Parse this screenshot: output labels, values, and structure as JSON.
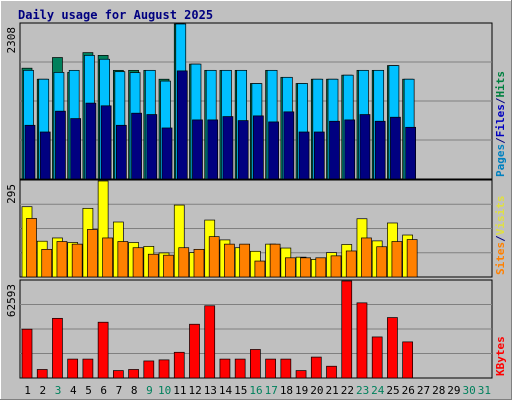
{
  "chart_data": {
    "type": "bar",
    "title": "Daily usage for August 2025",
    "days": [
      "1",
      "2",
      "3",
      "4",
      "5",
      "6",
      "7",
      "8",
      "9",
      "10",
      "11",
      "12",
      "13",
      "14",
      "15",
      "16",
      "17",
      "18",
      "19",
      "20",
      "21",
      "22",
      "23",
      "24",
      "25",
      "26",
      "27",
      "28",
      "29",
      "30",
      "31"
    ],
    "weekend_days": [
      "3",
      "9",
      "10",
      "16",
      "17",
      "23",
      "24",
      "30",
      "31"
    ],
    "panels": [
      {
        "name": "pages-files-hits",
        "max_label": "2308",
        "ymax": 2308,
        "legend": [
          {
            "text": "Pages",
            "color": "#0080c0"
          },
          {
            "text": "/",
            "color": "#000080"
          },
          {
            "text": "Files",
            "color": "#0000c0"
          },
          {
            "text": "/",
            "color": "#000080"
          },
          {
            "text": "Hits",
            "color": "#008040"
          }
        ],
        "series": [
          {
            "name": "Hits",
            "color": "#00805c",
            "values": [
              1650,
              1486,
              1809,
              1587,
              1882,
              1841,
              1618,
              1618,
              1618,
              1486,
              2308,
              1711,
              1618,
              1618,
              1618,
              1422,
              1618,
              1514,
              1422,
              1486,
              1486,
              1546,
              1618,
              1618,
              1689,
              1486,
              0,
              0,
              0,
              0,
              0
            ]
          },
          {
            "name": "Files",
            "color": "#00c0ff",
            "values": [
              1618,
              1486,
              1587,
              1618,
              1841,
              1783,
              1598,
              1584,
              1618,
              1458,
              2308,
              1711,
              1618,
              1618,
              1618,
              1422,
              1618,
              1514,
              1422,
              1486,
              1486,
              1546,
              1618,
              1618,
              1689,
              1486,
              0,
              0,
              0,
              0,
              0
            ]
          },
          {
            "name": "Pages",
            "color": "#000080",
            "values": [
              800,
              700,
              1010,
              900,
              1130,
              1090,
              800,
              980,
              960,
              760,
              1610,
              880,
              880,
              930,
              870,
              940,
              850,
              1000,
              700,
              700,
              860,
              880,
              960,
              860,
              920,
              770,
              0,
              0,
              0,
              0,
              0
            ]
          }
        ]
      },
      {
        "name": "visits-sites",
        "max_label": "295",
        "ymax": 295,
        "legend": [
          {
            "text": "Sites",
            "color": "#ff8000"
          },
          {
            "text": "/",
            "color": "#000080"
          },
          {
            "text": "Visits",
            "color": "#e0e040"
          }
        ],
        "series": [
          {
            "name": "Visits",
            "color": "#ffff00",
            "values": [
              216,
              110,
              120,
              106,
              211,
              295,
              169,
              106,
              94,
              74,
              221,
              75,
              175,
              114,
              90,
              79,
              101,
              89,
              61,
              54,
              75,
              100,
              179,
              111,
              166,
              129,
              0,
              0,
              0,
              0,
              0
            ]
          },
          {
            "name": "Sites",
            "color": "#ff8000",
            "values": [
              180,
              85,
              109,
              101,
              146,
              120,
              109,
              90,
              70,
              67,
              90,
              85,
              124,
              101,
              101,
              49,
              101,
              59,
              59,
              59,
              65,
              80,
              120,
              93,
              109,
              115,
              0,
              0,
              0,
              0,
              0
            ]
          }
        ]
      },
      {
        "name": "kbytes",
        "max_label": "62593",
        "ymax": 62593,
        "legend": [
          {
            "text": "KBytes",
            "color": "#ff0000"
          }
        ],
        "series": [
          {
            "name": "KBytes",
            "color": "#ff0000",
            "values": [
              31500,
              5500,
              38500,
              12200,
              12200,
              36000,
              4800,
              5500,
              11000,
              11700,
              16600,
              34700,
              46600,
              12200,
              12200,
              18400,
              12200,
              12200,
              4800,
              13500,
              7600,
              62593,
              48500,
              26500,
              39000,
              23300,
              0,
              0,
              0,
              0,
              0
            ]
          }
        ]
      }
    ]
  }
}
